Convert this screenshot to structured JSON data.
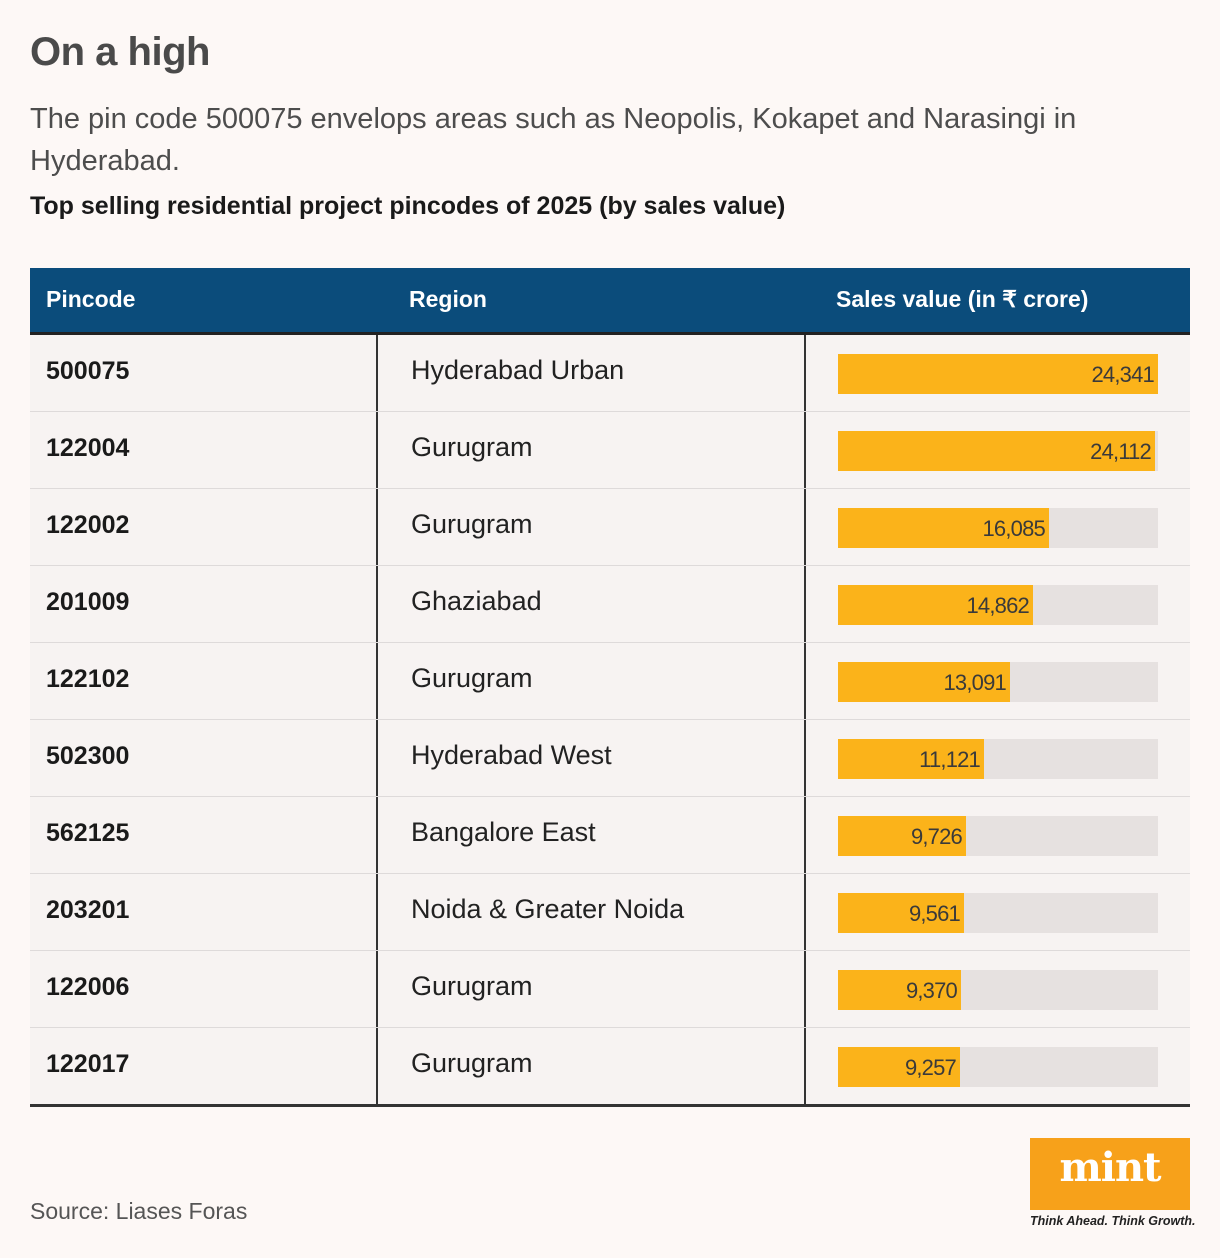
{
  "title": "On a high",
  "subtitle": "The pin code 500075 envelops areas such as Neopolis, Kokapet and Narasingi in Hyderabad.",
  "table_title": "Top selling residential project pincodes of 2025 (by sales value)",
  "headers": {
    "pincode": "Pincode",
    "region": "Region",
    "sales": "Sales value (in ₹ crore)"
  },
  "colors": {
    "header_bg": "#0b4c7b",
    "bar": "#fbb31a",
    "track": "#e6e1e0",
    "logo": "#f7a11a"
  },
  "chart_data": {
    "type": "table",
    "title": "Top selling residential project pincodes of 2025 (by sales value)",
    "columns": [
      "Pincode",
      "Region",
      "Sales value (in ₹ crore)"
    ],
    "rows": [
      {
        "pincode": "500075",
        "region": "Hyderabad Urban",
        "value": 24341,
        "label": "24,341"
      },
      {
        "pincode": "122004",
        "region": "Gurugram",
        "value": 24112,
        "label": "24,112"
      },
      {
        "pincode": "122002",
        "region": "Gurugram",
        "value": 16085,
        "label": "16,085"
      },
      {
        "pincode": "201009",
        "region": "Ghaziabad",
        "value": 14862,
        "label": "14,862"
      },
      {
        "pincode": "122102",
        "region": "Gurugram",
        "value": 13091,
        "label": "13,091"
      },
      {
        "pincode": "502300",
        "region": "Hyderabad West",
        "value": 11121,
        "label": "11,121"
      },
      {
        "pincode": "562125",
        "region": "Bangalore East",
        "value": 9726,
        "label": "9,726"
      },
      {
        "pincode": "203201",
        "region": "Noida & Greater Noida",
        "value": 9561,
        "label": "9,561"
      },
      {
        "pincode": "122006",
        "region": "Gurugram",
        "value": 9370,
        "label": "9,370"
      },
      {
        "pincode": "122017",
        "region": "Gurugram",
        "value": 9257,
        "label": "9,257"
      }
    ],
    "bar_max": 24341
  },
  "source": "Source: Liases Foras",
  "logo": {
    "text": "mint",
    "tagline": "Think Ahead. Think Growth."
  }
}
